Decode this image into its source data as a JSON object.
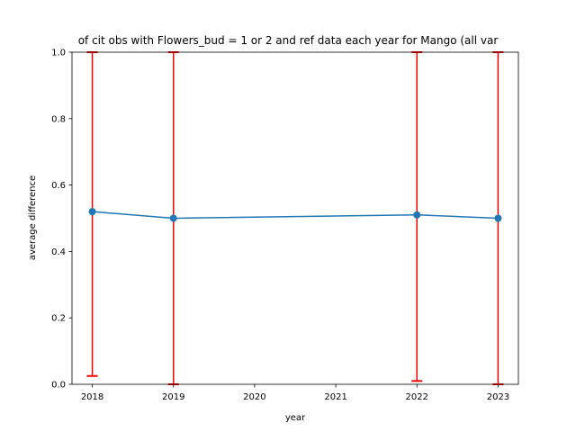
{
  "chart_data": {
    "type": "line",
    "title": "of cit obs with Flowers_bud = 1 or 2 and ref data each year for Mango (all var",
    "xlabel": "year",
    "ylabel": "average difference",
    "x": [
      2018,
      2019,
      2022,
      2023
    ],
    "y": [
      0.52,
      0.5,
      0.51,
      0.5
    ],
    "error_low": [
      0.025,
      0.0,
      0.01,
      0.0
    ],
    "error_high": [
      1.0,
      1.0,
      1.0,
      1.0
    ],
    "xlim": [
      2017.75,
      2023.25
    ],
    "ylim": [
      0.0,
      1.0
    ],
    "xticks": [
      2018,
      2019,
      2020,
      2021,
      2022,
      2023
    ],
    "yticks": [
      0.0,
      0.2,
      0.4,
      0.6,
      0.8,
      1.0
    ],
    "ytick_labels": [
      "0.0",
      "0.2",
      "0.4",
      "0.6",
      "0.8",
      "1.0"
    ],
    "grid": false,
    "line_color": "#1f77b4",
    "error_color": "#ff0000"
  }
}
